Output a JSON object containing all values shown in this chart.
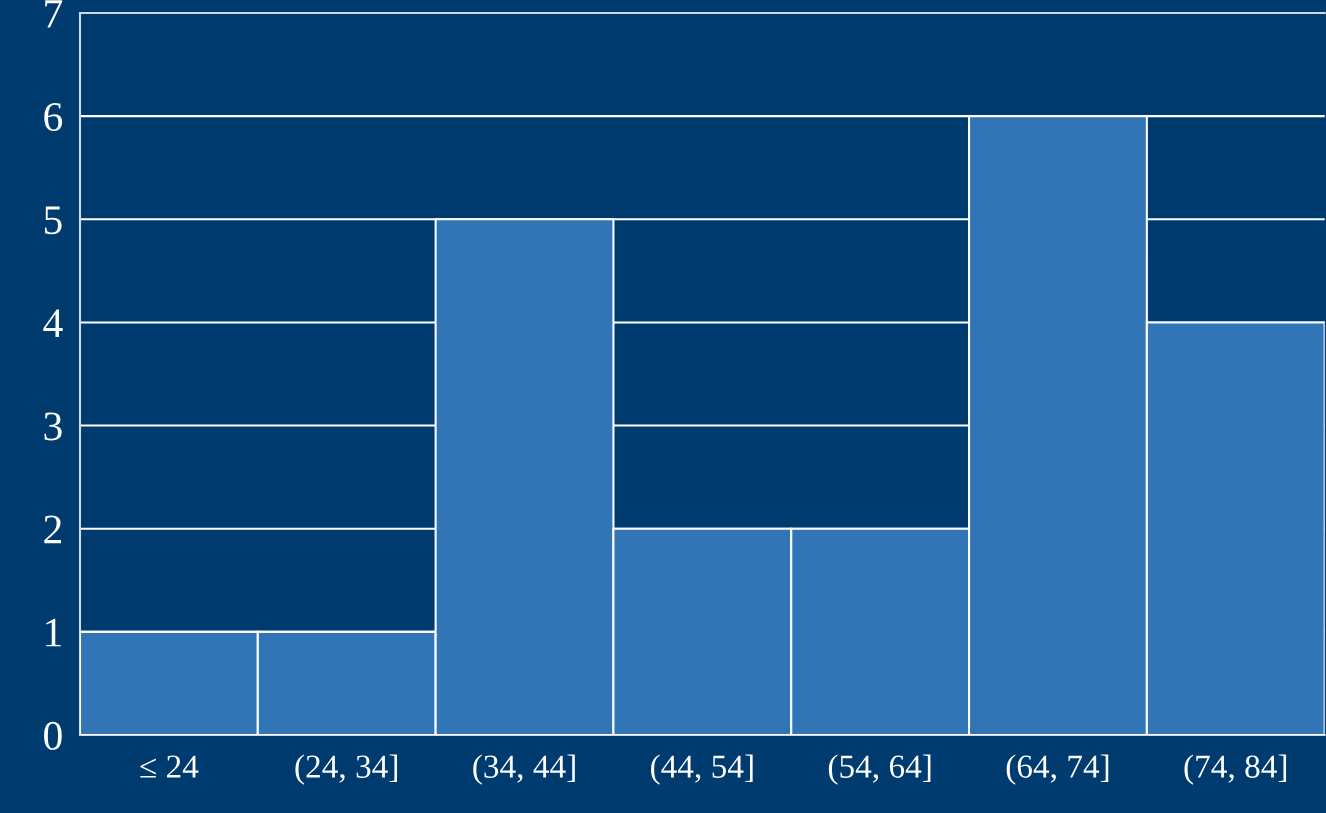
{
  "chart_data": {
    "type": "bar",
    "categories": [
      "≤ 24",
      "(24, 34]",
      "(34, 44]",
      "(44, 54]",
      "(54, 64]",
      "(64, 74]",
      "(74, 84]"
    ],
    "values": [
      1,
      1,
      5,
      2,
      2,
      6,
      4
    ],
    "color": "#3175b6",
    "ylim": [
      0,
      7
    ],
    "yticks": [
      0,
      1,
      2,
      3,
      4,
      5,
      6,
      7
    ],
    "grid": "y"
  }
}
